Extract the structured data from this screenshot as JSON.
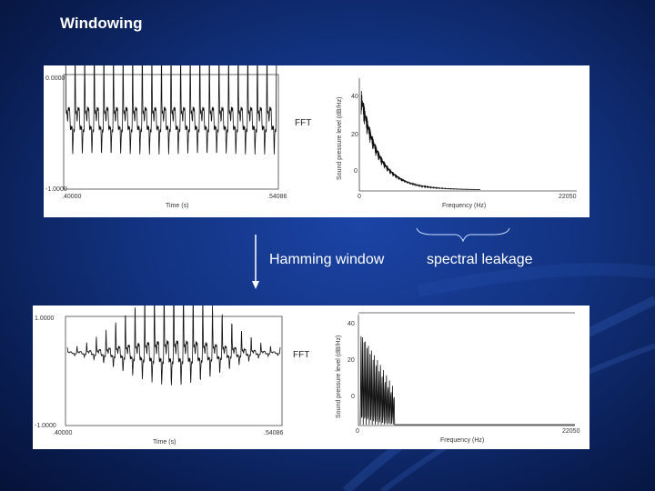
{
  "slide": {
    "title": "Windowing",
    "hamming_label": "Hamming window",
    "leakage_label": "spectral leakage"
  },
  "top_panel": {
    "time_ymax": "0.0000",
    "time_ymin": "-1.0000",
    "time_xmin": ".40000",
    "time_xmax": ".54086",
    "time_xlabel": "Time (s)",
    "fft_label": "FFT",
    "spec_ylabel": "Sound pressure level (dB/Hz)",
    "spec_y_ticks": [
      "40",
      "20",
      "0"
    ],
    "spec_x_min": "0",
    "spec_x_max": "22050",
    "spec_xlabel": "Frequency (Hz)"
  },
  "bottom_panel": {
    "time_ymax": "1.0000",
    "time_ymin": "-1.0000",
    "time_xmin": ".40000",
    "time_xmax": ".54086",
    "time_xlabel": "Time (s)",
    "fft_label": "FFT",
    "spec_ylabel": "Sound pressure level (dB/Hz)",
    "spec_y_ticks": [
      "40",
      "20",
      "0"
    ],
    "spec_x_min": "0",
    "spec_x_max": "22050",
    "spec_xlabel": "Frequency (Hz)"
  }
}
